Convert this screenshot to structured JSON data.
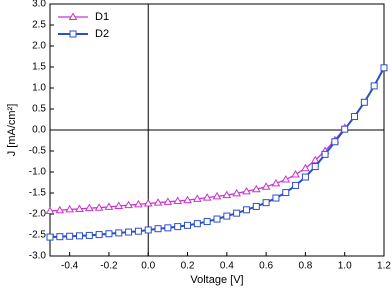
{
  "chart_data": {
    "type": "line",
    "x_label": "Voltage [V]",
    "y_label": "J [mA/cm²]",
    "x": [
      -0.5,
      -0.45,
      -0.4,
      -0.35,
      -0.3,
      -0.25,
      -0.2,
      -0.15,
      -0.1,
      -0.05,
      0,
      0.05,
      0.1,
      0.15,
      0.2,
      0.25,
      0.3,
      0.35,
      0.4,
      0.45,
      0.5,
      0.55,
      0.6,
      0.65,
      0.7,
      0.75,
      0.8,
      0.85,
      0.9,
      0.95,
      1.0,
      1.05,
      1.1,
      1.15,
      1.2
    ],
    "series": [
      {
        "name": "D1",
        "color": "#cc33cc",
        "marker": "triangle",
        "values": [
          -1.93,
          -1.91,
          -1.89,
          -1.88,
          -1.86,
          -1.85,
          -1.83,
          -1.81,
          -1.79,
          -1.77,
          -1.75,
          -1.73,
          -1.71,
          -1.69,
          -1.67,
          -1.64,
          -1.61,
          -1.58,
          -1.55,
          -1.51,
          -1.46,
          -1.41,
          -1.35,
          -1.27,
          -1.18,
          -1.06,
          -0.91,
          -0.72,
          -0.5,
          -0.24,
          0.05,
          null,
          null,
          null,
          null
        ]
      },
      {
        "name": "D2",
        "color": "#2a4fcc",
        "marker": "square",
        "values": [
          -2.55,
          -2.54,
          -2.53,
          -2.52,
          -2.51,
          -2.49,
          -2.47,
          -2.45,
          -2.43,
          -2.41,
          -2.38,
          -2.35,
          -2.33,
          -2.3,
          -2.27,
          -2.23,
          -2.18,
          -2.12,
          -2.05,
          -1.98,
          -1.9,
          -1.82,
          -1.73,
          -1.62,
          -1.49,
          -1.32,
          -1.12,
          -0.87,
          -0.58,
          -0.28,
          0.02,
          0.32,
          0.66,
          1.05,
          1.48
        ]
      }
    ],
    "xlim": [
      -0.5,
      1.2
    ],
    "xticks": [
      -0.4,
      -0.2,
      {
        "value": 0,
        "label": "0.0"
      },
      0.2,
      0.4,
      0.6,
      0.8,
      {
        "value": 1,
        "label": "1.0"
      },
      1.2
    ],
    "ylim": [
      -3,
      3
    ],
    "yticks": [
      {
        "value": -3,
        "label": "-3.0"
      },
      -2.5,
      {
        "value": -2,
        "label": "-2.0"
      },
      -1.5,
      {
        "value": -1,
        "label": "-1.0"
      },
      -0.5,
      {
        "value": 0,
        "label": "0.0"
      },
      0.5,
      {
        "value": 1,
        "label": "1.0"
      },
      1.5,
      {
        "value": 2,
        "label": "2.0"
      },
      2.5,
      {
        "value": 3,
        "label": "3.0"
      }
    ],
    "zero_lines": true,
    "legend": "upper-left"
  }
}
